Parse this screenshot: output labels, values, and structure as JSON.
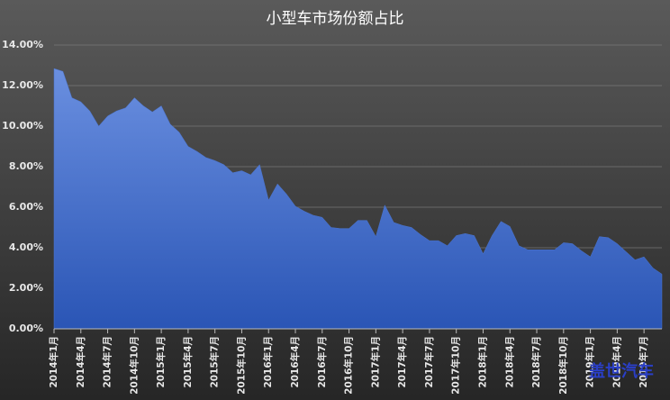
{
  "chart_data": {
    "type": "area",
    "title": "小型车市场份额占比",
    "categories": [
      "2014年1月",
      null,
      null,
      "2014年4月",
      null,
      null,
      "2014年7月",
      null,
      null,
      "2014年10月",
      null,
      null,
      "2015年1月",
      null,
      null,
      "2015年4月",
      null,
      null,
      "2015年7月",
      null,
      null,
      "2015年10月",
      null,
      null,
      "2016年1月",
      null,
      null,
      "2016年4月",
      null,
      null,
      "2016年7月",
      null,
      null,
      "2016年10月",
      null,
      null,
      "2017年1月",
      null,
      null,
      "2017年4月",
      null,
      null,
      "2017年7月",
      null,
      null,
      "2017年10月",
      null,
      null,
      "2018年1月",
      null,
      null,
      "2018年4月",
      null,
      null,
      "2018年7月",
      null,
      null,
      "2018年10月",
      null,
      null,
      "2019年1月",
      null,
      null,
      "2019年4月",
      null,
      null,
      "2019年7月",
      null,
      null
    ],
    "values": [
      12.84,
      12.7,
      11.4,
      11.2,
      10.75,
      10.0,
      10.5,
      10.75,
      10.9,
      11.4,
      11.0,
      10.7,
      11.0,
      10.1,
      9.7,
      9.0,
      8.75,
      8.45,
      8.3,
      8.1,
      7.7,
      7.8,
      7.6,
      8.1,
      6.35,
      7.15,
      6.65,
      6.05,
      5.8,
      5.6,
      5.5,
      5.0,
      4.95,
      4.95,
      5.35,
      5.35,
      4.55,
      6.1,
      5.25,
      5.1,
      5.0,
      4.65,
      4.35,
      4.35,
      4.1,
      4.6,
      4.7,
      4.6,
      3.7,
      4.6,
      5.3,
      5.05,
      4.1,
      3.9,
      3.9,
      3.9,
      3.9,
      4.25,
      4.2,
      3.85,
      3.55,
      4.55,
      4.5,
      4.2,
      3.8,
      3.4,
      3.55,
      3.0,
      2.7
    ],
    "color": "#4a74cf",
    "ylim": [
      0,
      14
    ],
    "yticks": [
      {
        "value": 0,
        "label": "0.00%"
      },
      {
        "value": 2,
        "label": "2.00%"
      },
      {
        "value": 4,
        "label": "4.00%"
      },
      {
        "value": 6,
        "label": "6.00%"
      },
      {
        "value": 8,
        "label": "8.00%"
      },
      {
        "value": 10,
        "label": "10.00%"
      },
      {
        "value": 12,
        "label": "12.00%"
      },
      {
        "value": 14,
        "label": "14.00%"
      }
    ],
    "grid": true
  },
  "watermark": "盖世汽车"
}
